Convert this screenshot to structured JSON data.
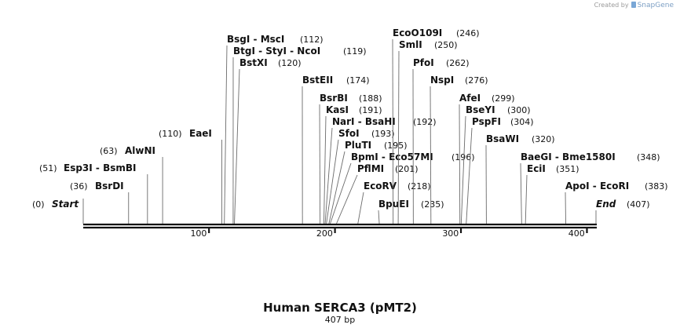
{
  "credit": {
    "prefix": "Created by",
    "brand": "SnapGene"
  },
  "map": {
    "title": "Human SERCA3 (pMT2)",
    "length_label": "407 bp",
    "length_bp": 407,
    "start_label": "Start",
    "start_pos": "(0)",
    "end_label": "End",
    "end_pos": "(407)",
    "ruler_ticks": [
      "100",
      "200",
      "300",
      "400"
    ],
    "sites": [
      {
        "names": [
          "BsrDI"
        ],
        "pos": "(36)",
        "bp": 36
      },
      {
        "names": [
          "Esp3I",
          "BsmBI"
        ],
        "pos": "(51)",
        "bp": 51
      },
      {
        "names": [
          "AlwNI"
        ],
        "pos": "(63)",
        "bp": 63
      },
      {
        "names": [
          "EaeI"
        ],
        "pos": "(110)",
        "bp": 110
      },
      {
        "names": [
          "BsgI",
          "MscI"
        ],
        "pos": "(112)",
        "bp": 112
      },
      {
        "names": [
          "BtgI",
          "StyI",
          "NcoI"
        ],
        "pos": "(119)",
        "bp": 119
      },
      {
        "names": [
          "BstXI"
        ],
        "pos": "(120)",
        "bp": 120
      },
      {
        "names": [
          "BstEII"
        ],
        "pos": "(174)",
        "bp": 174
      },
      {
        "names": [
          "BsrBI"
        ],
        "pos": "(188)",
        "bp": 188
      },
      {
        "names": [
          "KasI"
        ],
        "pos": "(191)",
        "bp": 191
      },
      {
        "names": [
          "NarI",
          "BsaHI"
        ],
        "pos": "(192)",
        "bp": 192
      },
      {
        "names": [
          "SfoI"
        ],
        "pos": "(193)",
        "bp": 193
      },
      {
        "names": [
          "PluTI"
        ],
        "pos": "(195)",
        "bp": 195
      },
      {
        "names": [
          "BpmI",
          "Eco57MI"
        ],
        "pos": "(196)",
        "bp": 196
      },
      {
        "names": [
          "PflMI"
        ],
        "pos": "(201)",
        "bp": 201
      },
      {
        "names": [
          "EcoRV"
        ],
        "pos": "(218)",
        "bp": 218
      },
      {
        "names": [
          "BpuEI"
        ],
        "pos": "(235)",
        "bp": 235
      },
      {
        "names": [
          "EcoO109I"
        ],
        "pos": "(246)",
        "bp": 246
      },
      {
        "names": [
          "SmlI"
        ],
        "pos": "(250)",
        "bp": 250
      },
      {
        "names": [
          "PfoI"
        ],
        "pos": "(262)",
        "bp": 262
      },
      {
        "names": [
          "NspI"
        ],
        "pos": "(276)",
        "bp": 276
      },
      {
        "names": [
          "AfeI"
        ],
        "pos": "(299)",
        "bp": 299
      },
      {
        "names": [
          "BseYI"
        ],
        "pos": "(300)",
        "bp": 300
      },
      {
        "names": [
          "PspFI"
        ],
        "pos": "(304)",
        "bp": 304
      },
      {
        "names": [
          "BsaWI"
        ],
        "pos": "(320)",
        "bp": 320
      },
      {
        "names": [
          "BaeGI",
          "Bme1580I"
        ],
        "pos": "(348)",
        "bp": 348
      },
      {
        "names": [
          "EciI"
        ],
        "pos": "(351)",
        "bp": 351
      },
      {
        "names": [
          "ApoI",
          "EcoRI"
        ],
        "pos": "(383)",
        "bp": 383
      }
    ]
  }
}
